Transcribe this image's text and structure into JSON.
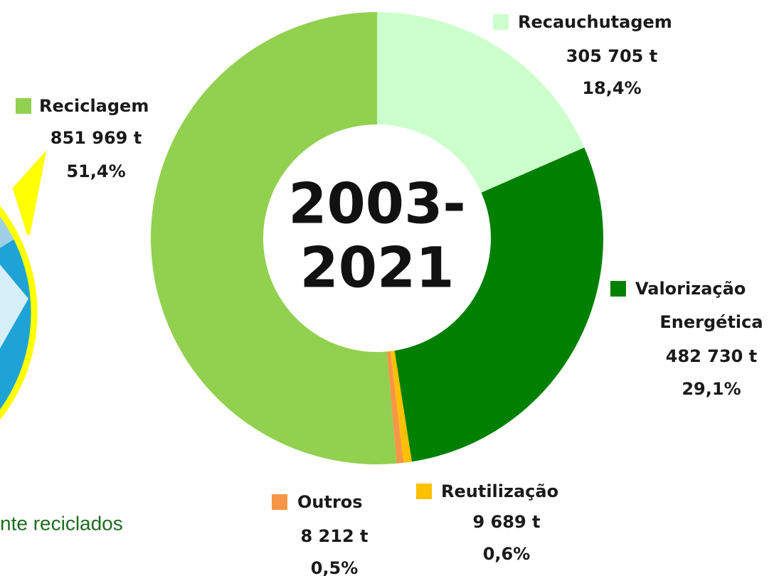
{
  "chart_data": {
    "type": "donut",
    "categories": [
      "Recauchutagem",
      "Valorização Energética",
      "Reutilização",
      "Outros",
      "Reciclagem"
    ],
    "values": [
      305705,
      482730,
      9689,
      8212,
      851969
    ],
    "value_labels": [
      "305 705 t",
      "482 730 t",
      "9 689 t",
      "8 212 t",
      "851 969 t"
    ],
    "percents": [
      18.4,
      29.1,
      0.6,
      0.5,
      51.4
    ],
    "percent_labels": [
      "18,4%",
      "29,1%",
      "0,6%",
      "0,5%",
      "51,4%"
    ],
    "colors": [
      "#ccffcc",
      "#008000",
      "#ffc000",
      "#f79646",
      "#92d050"
    ],
    "center_label": [
      "2003-",
      "2021"
    ]
  },
  "caption": "nte reciclados"
}
